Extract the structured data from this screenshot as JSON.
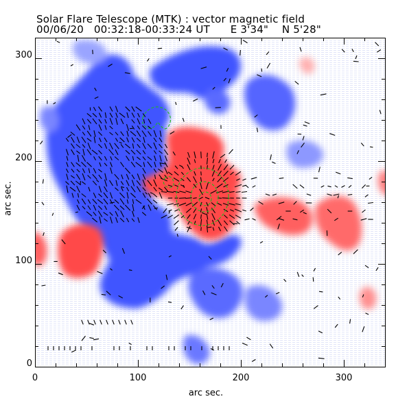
{
  "header": {
    "title": "Solar Flare Telescope (MTK) : vector magnetic field",
    "observation": "00/06/20   00:32:18-00:33:24 UT      E 3'34\"    N 5'28\""
  },
  "axes": {
    "x_label": "arc sec.",
    "y_label": "arc sec.",
    "x_ticks": [
      "0",
      "100",
      "200",
      "300"
    ],
    "y_ticks": [
      "0",
      "100",
      "200",
      "300"
    ],
    "x_range": [
      0,
      340
    ],
    "y_range": [
      0,
      320
    ]
  },
  "colors": {
    "positive_polarity": "#ff4a4a",
    "negative_polarity": "#3f55ff",
    "contour": "#1eb81e",
    "vector": "#000000",
    "background": "#ffffff"
  }
}
